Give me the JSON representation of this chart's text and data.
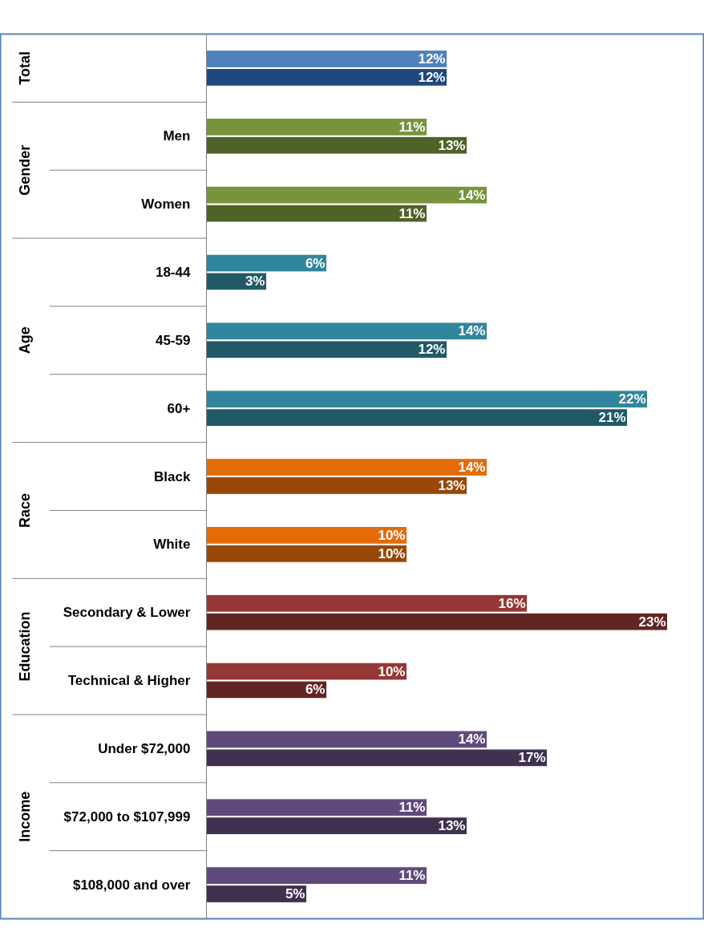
{
  "chart_data": {
    "type": "bar",
    "orientation": "horizontal",
    "xlim": [
      0,
      24.84
    ],
    "tick_labels": "y",
    "grid": false,
    "categories": [
      null,
      "Men",
      "Women",
      "18-44",
      "45-59",
      "60+",
      "Black",
      "White",
      "Secondary & Lower",
      "Technical & Higher",
      "Under $72,000",
      "$72,000 to $107,999",
      "$108,000 and over"
    ],
    "series": [
      {
        "colors": [
          "#4f81bd",
          "#77933c",
          "#77933c",
          "#31859c",
          "#31859c",
          "#31859c",
          "#e36c09",
          "#e36c09",
          "#953735",
          "#953735",
          "#604a7b",
          "#604a7b",
          "#604a7b"
        ],
        "values": [
          12,
          11,
          14,
          6,
          14,
          22,
          14,
          10,
          16,
          10,
          14,
          11,
          11
        ],
        "value_labels": [
          "12%",
          "11%",
          "14%",
          "6%",
          "14%",
          "22%",
          "14%",
          "10%",
          "16%",
          "10%",
          "14%",
          "11%",
          "11%"
        ]
      },
      {
        "colors": [
          "#1f497d",
          "#4f6228",
          "#4f6228",
          "#215968",
          "#215968",
          "#215968",
          "#974806",
          "#974806",
          "#632523",
          "#632523",
          "#403151",
          "#403151",
          "#403151"
        ],
        "values": [
          12,
          13,
          11,
          3,
          12,
          21,
          13,
          10,
          23,
          6,
          17,
          13,
          5
        ],
        "value_labels": [
          "12%",
          "13%",
          "11%",
          "3%",
          "12%",
          "21%",
          "13%",
          "10%",
          "23%",
          "6%",
          "17%",
          "13%",
          "5%"
        ]
      }
    ],
    "annotations": [
      "Total",
      "Gender",
      "Age",
      "Race",
      "Education",
      "Income"
    ]
  }
}
